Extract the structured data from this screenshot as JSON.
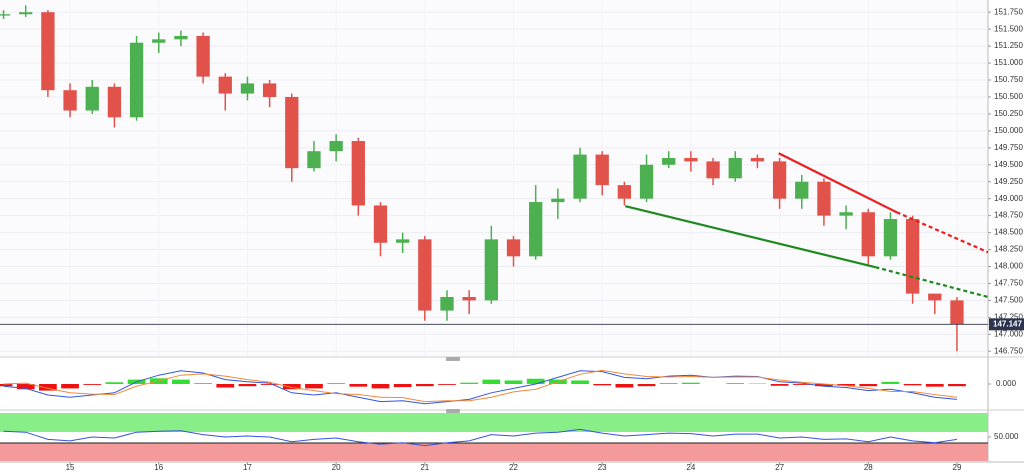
{
  "chart_data": [
    {
      "type": "candlestick",
      "x": [
        -0.75,
        -0.5,
        -0.25,
        0,
        0.25,
        0.5,
        0.75,
        1,
        1.25,
        1.5,
        1.75,
        2,
        2.25,
        2.5,
        2.75,
        3,
        3.25,
        3.5,
        3.75,
        4,
        4.25,
        4.5,
        4.75,
        5,
        5.25,
        5.5,
        5.75,
        6,
        6.25,
        6.5,
        6.75,
        7,
        7.25,
        7.5,
        7.75,
        8,
        8.25,
        8.5,
        8.75,
        9,
        9.25,
        9.5,
        9.75,
        10
      ],
      "open": [
        151.7,
        151.72,
        151.75,
        150.6,
        150.3,
        150.65,
        150.2,
        151.3,
        151.35,
        151.4,
        150.8,
        150.55,
        150.7,
        150.5,
        149.45,
        149.7,
        149.85,
        148.9,
        148.35,
        148.4,
        147.35,
        147.55,
        147.5,
        148.4,
        148.15,
        148.95,
        149.0,
        149.65,
        149.2,
        149.0,
        149.5,
        149.6,
        149.55,
        149.3,
        149.6,
        149.55,
        149.0,
        149.25,
        148.75,
        148.8,
        148.15,
        148.7,
        147.6,
        147.5
      ],
      "high": [
        151.78,
        151.85,
        151.78,
        150.7,
        150.75,
        150.7,
        151.4,
        151.45,
        151.48,
        151.45,
        150.85,
        150.8,
        150.75,
        150.55,
        149.85,
        149.95,
        149.9,
        148.95,
        148.5,
        148.45,
        147.65,
        147.65,
        148.6,
        148.45,
        149.2,
        149.15,
        149.75,
        149.7,
        149.25,
        149.65,
        149.7,
        149.7,
        149.6,
        149.7,
        149.65,
        149.6,
        149.35,
        149.3,
        148.9,
        148.85,
        148.8,
        148.75,
        147.6,
        147.55
      ],
      "low": [
        151.65,
        151.68,
        150.5,
        150.2,
        150.25,
        150.05,
        150.15,
        151.15,
        151.25,
        150.7,
        150.3,
        150.45,
        150.35,
        149.25,
        149.4,
        149.55,
        148.75,
        148.15,
        148.2,
        147.2,
        147.2,
        147.3,
        147.45,
        148.0,
        148.1,
        148.7,
        148.95,
        149.05,
        148.9,
        148.95,
        149.45,
        149.4,
        149.2,
        149.25,
        149.45,
        148.85,
        148.85,
        148.6,
        148.55,
        148.0,
        148.1,
        147.45,
        147.3,
        146.75
      ],
      "close": [
        151.72,
        151.75,
        150.6,
        150.3,
        150.65,
        150.2,
        151.3,
        151.35,
        151.4,
        150.8,
        150.55,
        150.7,
        150.5,
        149.45,
        149.7,
        149.85,
        148.9,
        148.35,
        148.4,
        147.35,
        147.55,
        147.5,
        148.4,
        148.15,
        148.95,
        149.0,
        149.65,
        149.2,
        149.0,
        149.5,
        149.6,
        149.55,
        149.3,
        149.6,
        149.55,
        149.0,
        149.25,
        148.75,
        148.8,
        148.15,
        148.7,
        147.6,
        147.5,
        147.15
      ],
      "up_color": "#4caf50",
      "down_color": "#e0524a",
      "xlim": [
        -0.79,
        10.35
      ],
      "xticks": [
        {
          "value": 0,
          "label": "15"
        },
        {
          "value": 1,
          "label": "16"
        },
        {
          "value": 2,
          "label": "17"
        },
        {
          "value": 3,
          "label": "20"
        },
        {
          "value": 4,
          "label": "21"
        },
        {
          "value": 5,
          "label": "22"
        },
        {
          "value": 6,
          "label": "23"
        },
        {
          "value": 7,
          "label": "24"
        },
        {
          "value": 8,
          "label": "27"
        },
        {
          "value": 9,
          "label": "28"
        },
        {
          "value": 10,
          "label": "29"
        }
      ],
      "ylim": [
        146.68,
        151.93
      ],
      "yticks": [
        {
          "value": 146.75,
          "label": "146.750"
        },
        {
          "value": 147,
          "label": "147.000"
        },
        {
          "value": 147.25,
          "label": "147.250"
        },
        {
          "value": 147.5,
          "label": "147.500"
        },
        {
          "value": 147.75,
          "label": "147.750"
        },
        {
          "value": 148,
          "label": "148.000"
        },
        {
          "value": 148.25,
          "label": "148.250"
        },
        {
          "value": 148.5,
          "label": "148.500"
        },
        {
          "value": 148.75,
          "label": "148.750"
        },
        {
          "value": 149,
          "label": "149.000"
        },
        {
          "value": 149.25,
          "label": "149.250"
        },
        {
          "value": 149.5,
          "label": "149.500"
        },
        {
          "value": 149.75,
          "label": "149.750"
        },
        {
          "value": 150,
          "label": "150.000"
        },
        {
          "value": 150.25,
          "label": "150.250"
        },
        {
          "value": 150.5,
          "label": "150.500"
        },
        {
          "value": 150.75,
          "label": "150.750"
        },
        {
          "value": 151,
          "label": "151.000"
        },
        {
          "value": 151.25,
          "label": "151.250"
        },
        {
          "value": 151.5,
          "label": "151.500"
        },
        {
          "value": 151.75,
          "label": "151.750"
        }
      ],
      "grid": true,
      "last_price": {
        "value": 147.147,
        "label": "147.147"
      },
      "trendlines": [
        {
          "color": "#ee1c1c",
          "dashed": false,
          "x": [
            7.99,
            9.32
          ],
          "y": [
            149.67,
            148.8
          ]
        },
        {
          "color": "#ee1c1c",
          "dashed": true,
          "x": [
            9.32,
            10.35
          ],
          "y": [
            148.8,
            148.21
          ]
        },
        {
          "color": "#1e8a1e",
          "dashed": false,
          "x": [
            6.26,
            9.08
          ],
          "y": [
            148.89,
            147.99
          ]
        },
        {
          "color": "#1e8a1e",
          "dashed": true,
          "x": [
            9.08,
            10.35
          ],
          "y": [
            147.99,
            147.55
          ]
        }
      ]
    },
    {
      "type": "macd",
      "x": [
        -0.75,
        -0.5,
        -0.25,
        0,
        0.25,
        0.5,
        0.75,
        1,
        1.25,
        1.5,
        1.75,
        2,
        2.25,
        2.5,
        2.75,
        3,
        3.25,
        3.5,
        3.75,
        4,
        4.25,
        4.5,
        4.75,
        5,
        5.25,
        5.5,
        5.75,
        6,
        6.25,
        6.5,
        6.75,
        7,
        7.25,
        7.5,
        7.75,
        8,
        8.25,
        8.5,
        8.75,
        9,
        9.25,
        9.5,
        9.75,
        10
      ],
      "histogram": [
        -0.05,
        -0.12,
        -0.15,
        -0.1,
        -0.02,
        0.04,
        0.1,
        0.13,
        0.1,
        0.02,
        -0.08,
        -0.05,
        -0.02,
        -0.12,
        -0.1,
        0.02,
        -0.06,
        -0.1,
        -0.07,
        -0.05,
        -0.02,
        0.03,
        0.1,
        0.08,
        0.12,
        0.1,
        0.08,
        -0.03,
        -0.08,
        -0.05,
        0.02,
        0.03,
        0.0,
        0.02,
        0.01,
        -0.04,
        -0.02,
        -0.05,
        -0.04,
        -0.05,
        0.05,
        -0.03,
        -0.06,
        -0.05
      ],
      "pos_color": "#33dd33",
      "neg_color": "#ee1111",
      "series": [
        {
          "color": "#3355dd",
          "values": [
            -0.05,
            -0.1,
            -0.25,
            -0.3,
            -0.25,
            -0.2,
            0.05,
            0.2,
            0.3,
            0.25,
            0.1,
            0.05,
            0.02,
            -0.2,
            -0.25,
            -0.2,
            -0.3,
            -0.4,
            -0.38,
            -0.45,
            -0.4,
            -0.35,
            -0.2,
            -0.1,
            0.0,
            0.15,
            0.3,
            0.28,
            0.15,
            0.12,
            0.18,
            0.2,
            0.15,
            0.18,
            0.17,
            0.05,
            0.02,
            -0.05,
            -0.08,
            -0.15,
            -0.12,
            -0.2,
            -0.3,
            -0.35
          ]
        },
        {
          "color": "#f08a3a",
          "values": [
            0.0,
            0.02,
            -0.1,
            -0.2,
            -0.23,
            -0.24,
            -0.05,
            0.07,
            0.2,
            0.23,
            0.18,
            0.1,
            0.04,
            -0.08,
            -0.15,
            -0.22,
            -0.24,
            -0.3,
            -0.31,
            -0.4,
            -0.38,
            -0.38,
            -0.3,
            -0.18,
            -0.12,
            0.05,
            0.22,
            0.31,
            0.23,
            0.17,
            0.16,
            0.17,
            0.15,
            0.16,
            0.16,
            0.09,
            0.04,
            0.0,
            -0.04,
            -0.1,
            -0.17,
            -0.17,
            -0.24,
            -0.3
          ]
        }
      ],
      "xlim": [
        -0.79,
        10.35
      ],
      "ylim": [
        -0.5,
        0.5
      ],
      "yticks": [
        {
          "value": 0,
          "label": "0.000"
        }
      ]
    },
    {
      "type": "rsi",
      "x": [
        -0.75,
        -0.5,
        -0.25,
        0,
        0.25,
        0.5,
        0.75,
        1,
        1.25,
        1.5,
        1.75,
        2,
        2.25,
        2.5,
        2.75,
        3,
        3.25,
        3.5,
        3.75,
        4,
        4.25,
        4.5,
        4.75,
        5,
        5.25,
        5.5,
        5.75,
        6,
        6.25,
        6.5,
        6.75,
        7,
        7.25,
        7.5,
        7.75,
        8,
        8.25,
        8.5,
        8.75,
        9,
        9.25,
        9.5,
        9.75,
        10
      ],
      "values": [
        62,
        60,
        45,
        42,
        50,
        48,
        60,
        62,
        63,
        55,
        50,
        52,
        50,
        40,
        45,
        48,
        40,
        35,
        38,
        32,
        38,
        42,
        55,
        52,
        58,
        60,
        66,
        58,
        52,
        55,
        58,
        57,
        52,
        56,
        56,
        48,
        50,
        45,
        46,
        40,
        50,
        42,
        38,
        45
      ],
      "color": "#3355dd",
      "xlim": [
        -0.79,
        10.35
      ],
      "ylim": [
        0,
        100
      ],
      "yticks": [
        {
          "value": 50,
          "label": "50.000"
        }
      ]
    }
  ]
}
